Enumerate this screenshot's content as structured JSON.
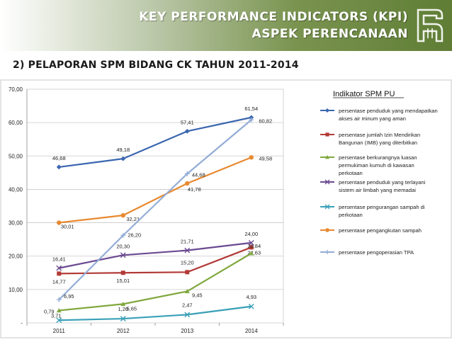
{
  "header": {
    "line1": "KEY PERFORMANCE INDICATORS (KPI)",
    "line2": "ASPEK PERENCANAAN"
  },
  "subtitle": "2) PELAPORAN SPM BIDANG CK TAHUN 2011-2014",
  "chart_data": {
    "type": "line",
    "categories": [
      "2011",
      "2012",
      "2013",
      "2014"
    ],
    "ylim": [
      0,
      70
    ],
    "yticks": [
      "-",
      "10,00",
      "20,00",
      "30,00",
      "40,00",
      "50,00",
      "60,00",
      "70,00"
    ],
    "grid": true,
    "legend_title": "Indikator SPM PU",
    "legend_position": "right",
    "series": [
      {
        "name": "persentase penduduk yang mendapatkan akses air minum yang aman",
        "legend_lines": [
          "persentase penduduk yang mendapatkan",
          "akses air minum yang aman"
        ],
        "color": "#3a66b0",
        "marker": "diamond",
        "values": [
          46.68,
          49.18,
          57.41,
          61.54
        ],
        "labels": [
          "46,68",
          "49,18",
          "57,41",
          "61,54"
        ]
      },
      {
        "name": "persentase jumlah Izin Mendirikan Bangunan (IMB) yang diterbitkan",
        "legend_lines": [
          "persentase jumlah Izin Mendirikan",
          "Bangunan (IMB) yang diterbitkan"
        ],
        "color": "#b23a36",
        "marker": "square",
        "values": [
          14.77,
          15.01,
          15.2,
          22.63
        ],
        "labels": [
          "14,77",
          "15,01",
          "15,20",
          "22,63"
        ]
      },
      {
        "name": "persentase berkurangnya luasan permukiman kumuh di kawasan perkotaan",
        "legend_lines": [
          "persentase berkurangnya luasan",
          "permukiman kumuh di kawasan",
          "perkotaan"
        ],
        "color": "#80a83e",
        "marker": "triangle",
        "values": [
          3.71,
          5.65,
          9.45,
          20.84
        ],
        "labels": [
          "3,71",
          "5,65",
          "9,45",
          "20,84"
        ]
      },
      {
        "name": "persentase penduduk yang terlayani sistem air limbah yang memadai",
        "legend_lines": [
          "persentase penduduk yang terlayani",
          "sistem air limbah yang memadai"
        ],
        "color": "#6b4a92",
        "marker": "x",
        "values": [
          16.41,
          20.3,
          21.71,
          24.0
        ],
        "labels": [
          "16,41",
          "20,30",
          "21,71",
          "24,00"
        ]
      },
      {
        "name": "persentase pengurangan sampah di perkotaan",
        "legend_lines": [
          "persentase pengurangan sampah di",
          "perkotaan"
        ],
        "color": "#3aa0b8",
        "marker": "x",
        "values": [
          0.79,
          1.26,
          2.47,
          4.93
        ],
        "labels": [
          "0,79",
          "1,26",
          "2,47",
          "4,93"
        ]
      },
      {
        "name": "persentase pengangkutan sampah",
        "legend_lines": [
          "persentase pengangkutan sampah"
        ],
        "color": "#e8892f",
        "marker": "circle",
        "values": [
          30.01,
          32.21,
          41.78,
          49.58
        ],
        "labels": [
          "30,01",
          "32,21",
          "41,78",
          "49,58"
        ]
      },
      {
        "name": "persentase pengoperasian TPA",
        "legend_lines": [
          "persentase pengoperasian TPA"
        ],
        "color": "#93add6",
        "marker": "plus",
        "values": [
          6.95,
          26.2,
          44.68,
          60.82
        ],
        "labels": [
          "6,95",
          "26,20",
          "44,68",
          "60,82"
        ]
      }
    ]
  }
}
